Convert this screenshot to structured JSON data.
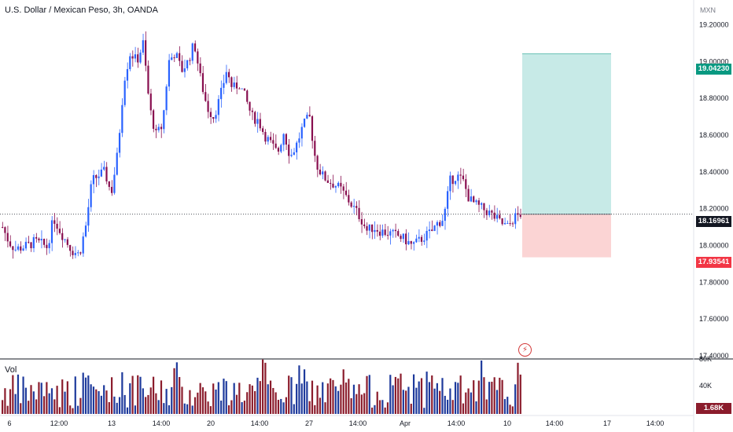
{
  "header": {
    "title": "U.S. Dollar / Mexican Peso, 3h, OANDA",
    "currency": "MXN",
    "volume_label": "Vol"
  },
  "price_axis": {
    "ticks": [
      "19.20000",
      "19.00000",
      "18.80000",
      "18.60000",
      "18.40000",
      "18.20000",
      "18.00000",
      "17.80000",
      "17.60000",
      "17.40000"
    ]
  },
  "volume_axis": {
    "ticks": [
      "80K",
      "40K"
    ]
  },
  "tags": {
    "last_price": "18.16961",
    "take_profit": "19.04230",
    "stop_loss": "17.93541",
    "volume": "1.68K"
  },
  "time_axis": {
    "labels": [
      "6",
      "12:00",
      "13",
      "14:00",
      "20",
      "14:00",
      "27",
      "14:00",
      "Apr",
      "14:00",
      "10",
      "14:00",
      "17",
      "14:00"
    ]
  },
  "colors": {
    "up": "#2962ff",
    "down": "#880e4f",
    "up_vol": "#1e3a9c",
    "down_vol": "#8b1c2c",
    "profit_zone": "#c7eae7",
    "loss_zone": "#fbd4d4",
    "profit_tag": "#089981",
    "loss_tag": "#f23645",
    "last_tag": "#131722"
  },
  "chart_data": {
    "type": "candlestick",
    "title": "U.S. Dollar / Mexican Peso, 3h, OANDA",
    "ylabel": "MXN",
    "ylim": [
      17.4,
      19.3
    ],
    "x_labels": [
      "6",
      "12:00",
      "13",
      "14:00",
      "20",
      "14:00",
      "27",
      "14:00",
      "Apr",
      "14:00",
      "10",
      "14:00",
      "17",
      "14:00"
    ],
    "close_path": [
      18.1,
      18.02,
      17.98,
      17.99,
      18.0,
      18.02,
      18.01,
      17.99,
      18.15,
      18.08,
      18.02,
      17.97,
      17.95,
      18.1,
      18.35,
      18.38,
      18.4,
      18.28,
      18.5,
      18.9,
      19.05,
      19.0,
      19.1,
      18.75,
      18.6,
      18.65,
      19.0,
      19.05,
      18.95,
      19.0,
      19.1,
      18.9,
      18.75,
      18.7,
      18.8,
      18.95,
      18.85,
      18.88,
      18.8,
      18.7,
      18.68,
      18.6,
      18.55,
      18.5,
      18.62,
      18.48,
      18.55,
      18.65,
      18.7,
      18.45,
      18.38,
      18.35,
      18.33,
      18.3,
      18.25,
      18.2,
      18.15,
      18.08,
      18.1,
      18.08,
      18.07,
      18.06,
      18.05,
      18.03,
      18.0,
      18.02,
      18.05,
      18.07,
      18.12,
      18.15,
      18.35,
      18.38,
      18.35,
      18.25,
      18.22,
      18.2,
      18.18,
      18.15,
      18.12,
      18.1,
      18.15,
      18.17
    ],
    "volume_ylim": [
      0,
      80000
    ],
    "last_price": 18.16961,
    "last_volume": "1.68K",
    "position": {
      "take_profit": 19.0423,
      "entry": 18.16961,
      "stop_loss": 17.93541
    }
  }
}
